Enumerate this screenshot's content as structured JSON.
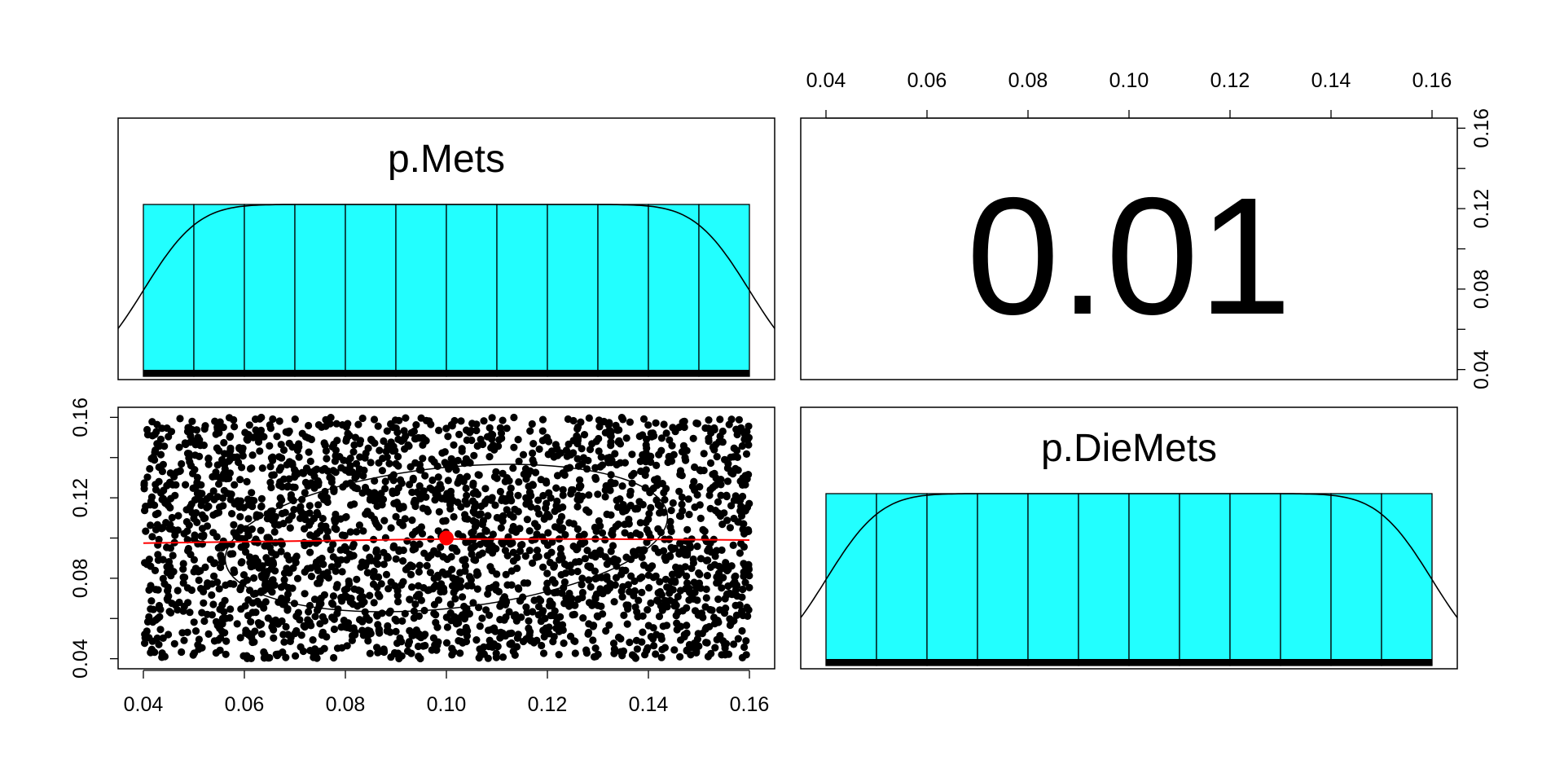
{
  "chart_data": [
    {
      "panel": "top-left",
      "type": "bar",
      "title": "p.Mets",
      "xlim": [
        0.035,
        0.165
      ],
      "bins": [
        0.04,
        0.05,
        0.06,
        0.07,
        0.08,
        0.09,
        0.1,
        0.11,
        0.12,
        0.13,
        0.14,
        0.15,
        0.16
      ],
      "relative_heights": [
        1,
        1,
        1,
        1,
        1,
        1,
        1,
        1,
        1,
        1,
        1,
        1
      ],
      "density_curve": true,
      "rug": true,
      "colors": {
        "bar_fill": "#22ffff",
        "bar_stroke": "#000000"
      }
    },
    {
      "panel": "top-right",
      "type": "table",
      "correlation_label": "0.01",
      "right_axis_ticks": [
        "0.04",
        "0.08",
        "0.12",
        "0.16"
      ],
      "top_axis_ticks": [
        "0.04",
        "0.06",
        "0.08",
        "0.10",
        "0.12",
        "0.14",
        "0.16"
      ]
    },
    {
      "panel": "bottom-left",
      "type": "scatter",
      "xlim": [
        0.035,
        0.165
      ],
      "ylim": [
        0.035,
        0.165
      ],
      "x_range": [
        0.04,
        0.16
      ],
      "y_range": [
        0.04,
        0.16
      ],
      "n_points": 2500,
      "center": {
        "x": 0.1,
        "y": 0.1
      },
      "loess_line": [
        [
          0.04,
          0.0975
        ],
        [
          0.07,
          0.0985
        ],
        [
          0.1,
          0.0995
        ],
        [
          0.13,
          0.0995
        ],
        [
          0.16,
          0.099
        ]
      ],
      "ellipse": {
        "x_radius": 0.044,
        "y_radius": 0.035
      },
      "bottom_axis_ticks": [
        "0.04",
        "0.06",
        "0.08",
        "0.10",
        "0.12",
        "0.14",
        "0.16"
      ],
      "left_axis_ticks": [
        "0.04",
        "0.08",
        "0.12",
        "0.16"
      ],
      "colors": {
        "point": "#000000",
        "fit": "#ff0000",
        "center": "#ff0000"
      }
    },
    {
      "panel": "bottom-right",
      "type": "bar",
      "title": "p.DieMets",
      "xlim": [
        0.035,
        0.165
      ],
      "bins": [
        0.04,
        0.05,
        0.06,
        0.07,
        0.08,
        0.09,
        0.1,
        0.11,
        0.12,
        0.13,
        0.14,
        0.15,
        0.16
      ],
      "relative_heights": [
        1,
        1,
        1,
        1,
        1,
        1,
        1,
        1,
        1,
        1,
        1,
        1
      ],
      "density_curve": true,
      "rug": true,
      "colors": {
        "bar_fill": "#22ffff",
        "bar_stroke": "#000000"
      }
    }
  ]
}
